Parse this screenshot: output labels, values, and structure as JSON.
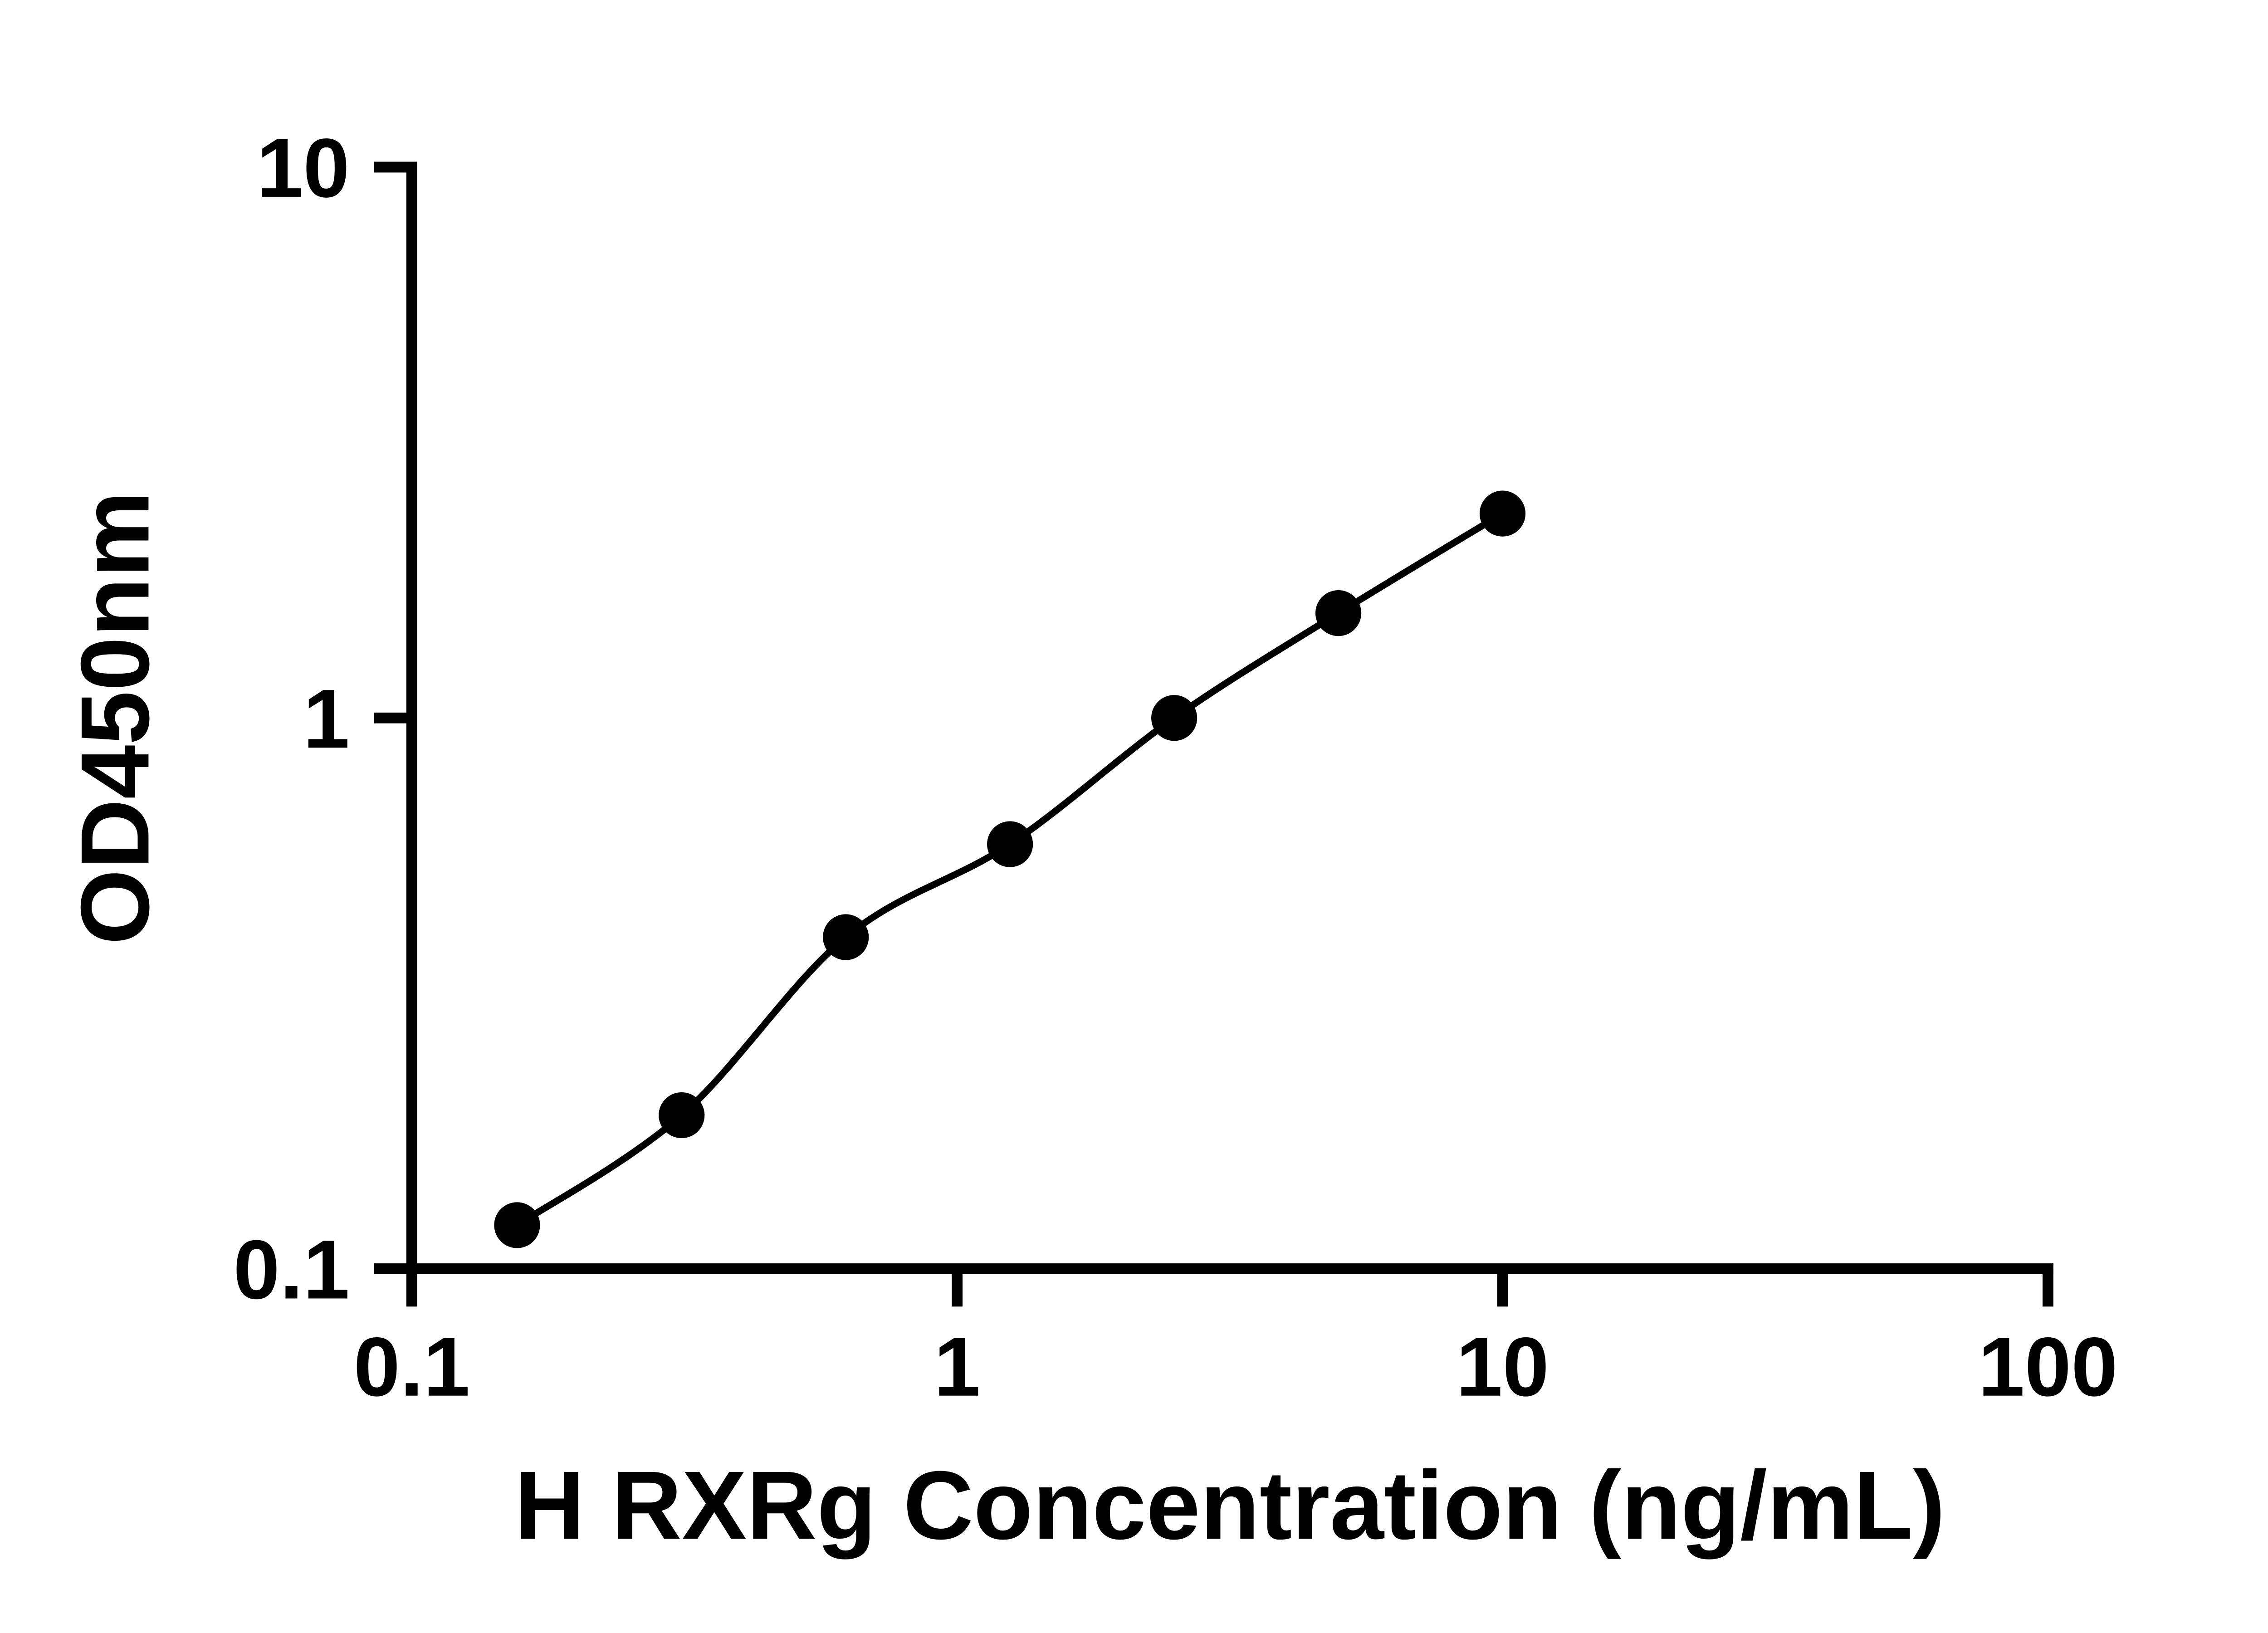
{
  "chart_data": {
    "type": "scatter",
    "title": "",
    "xlabel": "H RXRg Concentration (ng/mL)",
    "ylabel": "OD450nm",
    "x_scale": "log",
    "y_scale": "log",
    "xlim": [
      0.1,
      100
    ],
    "ylim": [
      0.1,
      10
    ],
    "x_ticks": [
      0.1,
      1,
      10,
      100
    ],
    "x_tick_labels": [
      "0.1",
      "1",
      "10",
      "100"
    ],
    "y_ticks": [
      0.1,
      1,
      10
    ],
    "y_tick_labels": [
      "0.1",
      "1",
      "10"
    ],
    "grid": false,
    "legend": false,
    "line_color": "#000000",
    "marker_color": "#000000",
    "series": [
      {
        "x": [
          0.156,
          0.3125,
          0.625,
          1.25,
          2.5,
          5,
          10
        ],
        "y": [
          0.12,
          0.19,
          0.4,
          0.59,
          1.0,
          1.55,
          2.35
        ]
      }
    ]
  }
}
